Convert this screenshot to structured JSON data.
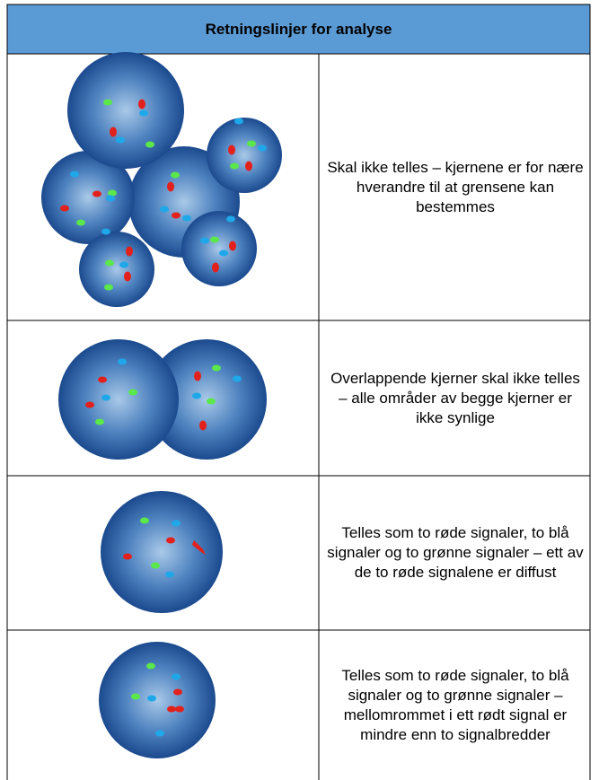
{
  "header": {
    "title": "Retningslinjer for analyse"
  },
  "rows": [
    {
      "text": "Skal ikke telles – kjernene er for nære hverandre til at grensene kan bestemmes"
    },
    {
      "text": "Overlappende kjerner skal ikke telles – alle områder av begge kjerner er ikke synlige"
    },
    {
      "text": "Telles som to røde signaler, to blå signaler og to grønne signaler – ett av de to røde signalene er diffust"
    },
    {
      "text": "Telles som to røde signaler, to blå signaler og to grønne signaler – mellomrommet i ett rødt signal er mindre enn to signalbredder"
    }
  ]
}
